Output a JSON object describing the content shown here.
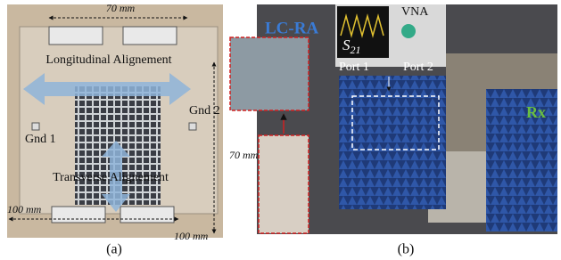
{
  "panel_a": {
    "top_width": "70 mm",
    "longitudinal": "Longitudinal Alignement",
    "gnd2": "Gnd 2",
    "gnd1": "Gnd 1",
    "side_width": "70 mm",
    "transverse": "Transverse Alignement",
    "bottom_left": "100 mm",
    "bottom_right": "100 mm",
    "caption": "(a)"
  },
  "panel_b": {
    "lc_ra": "LC-RA",
    "vna": "VNA",
    "s_param": {
      "base": "S",
      "subscript": "21"
    },
    "port1": "Port 1",
    "port2": "Port 2",
    "rx": "Rx",
    "caption": "(b)"
  }
}
